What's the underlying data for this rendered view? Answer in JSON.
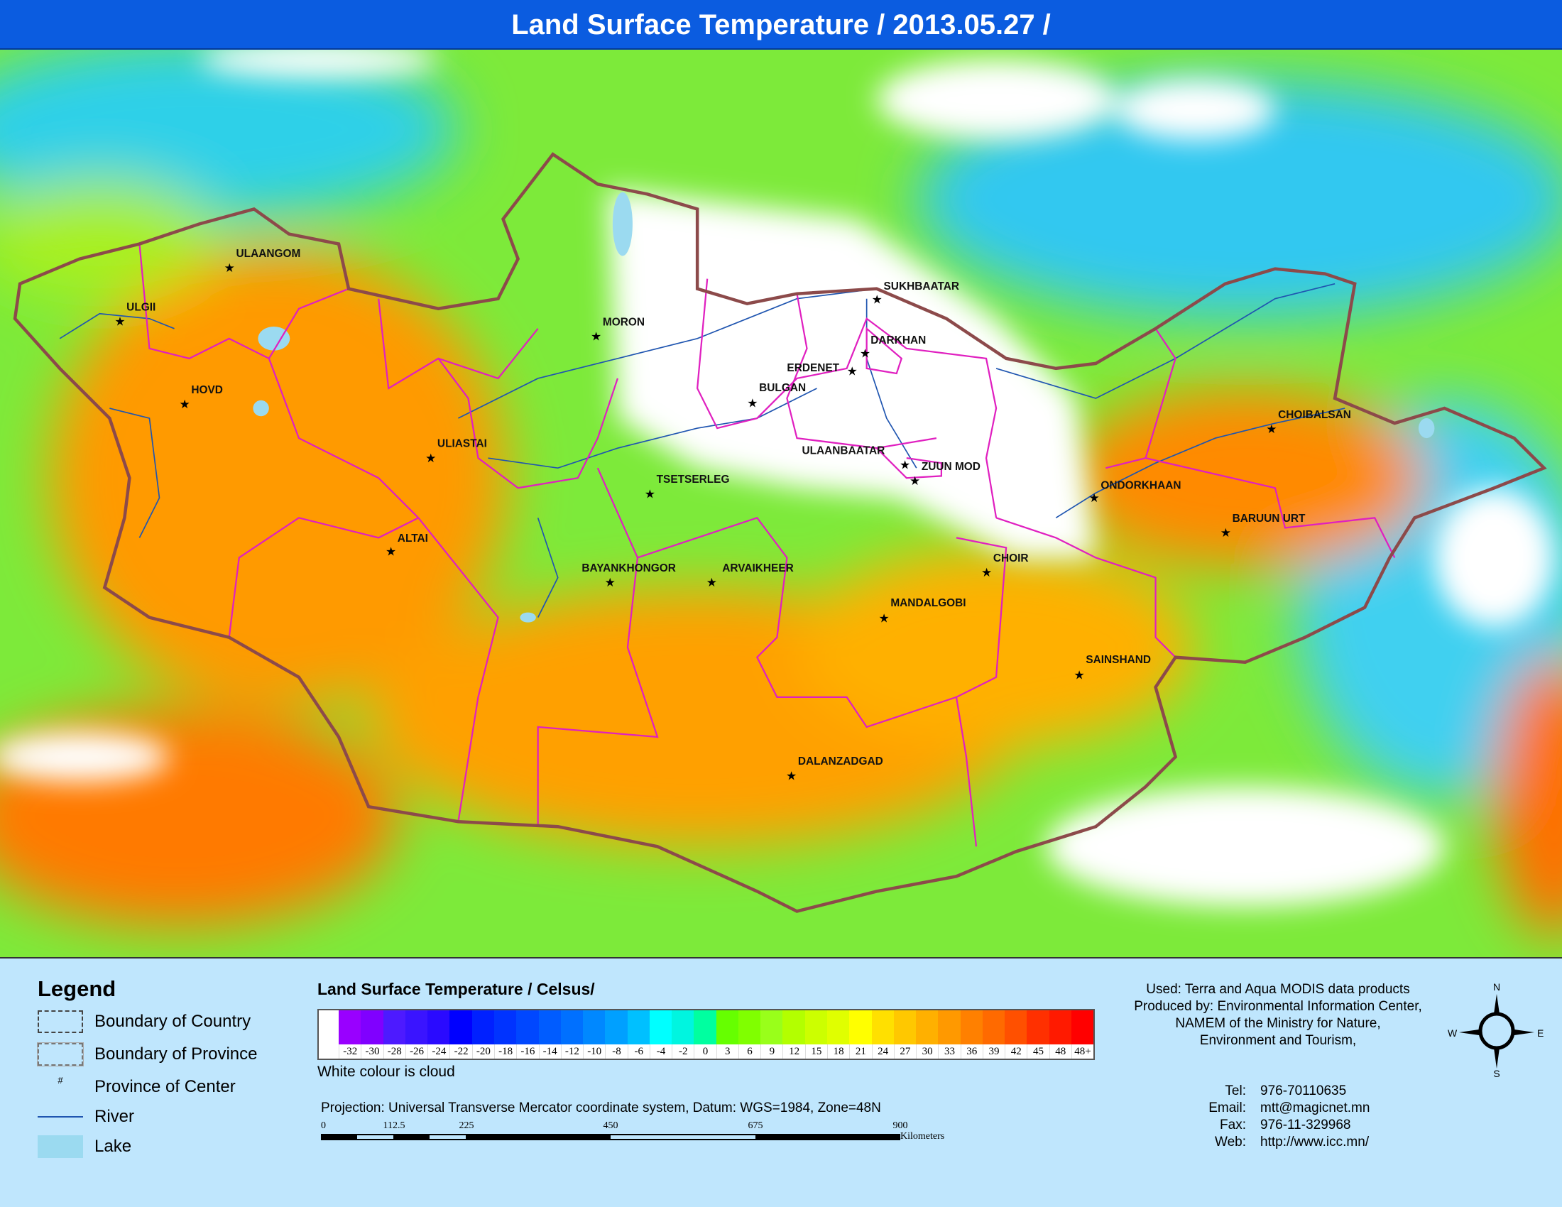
{
  "title": "Land Surface Temperature / 2013.05.27 /",
  "map": {
    "cities": [
      {
        "name": "ULAANGOM"
      },
      {
        "name": "ULGII"
      },
      {
        "name": "HOVD"
      },
      {
        "name": "MORON"
      },
      {
        "name": "SUKHBAATAR"
      },
      {
        "name": "DARKHAN"
      },
      {
        "name": "ERDENET"
      },
      {
        "name": "BULGAN"
      },
      {
        "name": "ULIASTAI"
      },
      {
        "name": "ULAANBAATAR"
      },
      {
        "name": "ZUUN MOD"
      },
      {
        "name": "CHOIBALSAN"
      },
      {
        "name": "TSETSERLEG"
      },
      {
        "name": "ONDORKHAAN"
      },
      {
        "name": "BARUUN URT"
      },
      {
        "name": "ALTAI"
      },
      {
        "name": "BAYANKHONGOR"
      },
      {
        "name": "ARVAIKHEER"
      },
      {
        "name": "CHOIR"
      },
      {
        "name": "MANDALGOBI"
      },
      {
        "name": "SAINSHAND"
      },
      {
        "name": "DALANZADGAD"
      }
    ],
    "colors": {
      "country_boundary": "#8c4a4a",
      "province_boundary": "#e020c0",
      "river": "#1f55b0",
      "lake": "#9bdaf0",
      "cloud": "#ffffff"
    }
  },
  "legend": {
    "title": "Legend",
    "items": [
      {
        "label": "Boundary of Country",
        "symbol": "country-boundary"
      },
      {
        "label": "Boundary of Province",
        "symbol": "province-boundary"
      },
      {
        "label": "Province of Center",
        "symbol": "#"
      },
      {
        "label": "River",
        "symbol": "river-line"
      },
      {
        "label": "Lake",
        "symbol": "lake-fill"
      }
    ]
  },
  "colorbar": {
    "title": "Land Surface Temperature / Celsus/",
    "note": "White colour is cloud",
    "classes": [
      {
        "label": "-32",
        "color": "#9900ff"
      },
      {
        "label": "-30",
        "color": "#8000ff"
      },
      {
        "label": "-28",
        "color": "#4d1aff"
      },
      {
        "label": "-26",
        "color": "#3a14ff"
      },
      {
        "label": "-24",
        "color": "#2a0aff"
      },
      {
        "label": "-22",
        "color": "#0000ff"
      },
      {
        "label": "-20",
        "color": "#0020ff"
      },
      {
        "label": "-18",
        "color": "#0033ff"
      },
      {
        "label": "-16",
        "color": "#0047ff"
      },
      {
        "label": "-14",
        "color": "#005cff"
      },
      {
        "label": "-12",
        "color": "#0070ff"
      },
      {
        "label": "-10",
        "color": "#0088ff"
      },
      {
        "label": "-8",
        "color": "#00a0ff"
      },
      {
        "label": "-6",
        "color": "#00c0ff"
      },
      {
        "label": "-4",
        "color": "#00ffff"
      },
      {
        "label": "-2",
        "color": "#00f5e0"
      },
      {
        "label": "0",
        "color": "#00ffa0"
      },
      {
        "label": "3",
        "color": "#66ff00"
      },
      {
        "label": "6",
        "color": "#80ff00"
      },
      {
        "label": "9",
        "color": "#99ff1a"
      },
      {
        "label": "12",
        "color": "#b3ff00"
      },
      {
        "label": "15",
        "color": "#ccff00"
      },
      {
        "label": "18",
        "color": "#e0ff00"
      },
      {
        "label": "21",
        "color": "#ffff00"
      },
      {
        "label": "24",
        "color": "#ffe000"
      },
      {
        "label": "27",
        "color": "#ffc800"
      },
      {
        "label": "30",
        "color": "#ffb000"
      },
      {
        "label": "33",
        "color": "#ff9900"
      },
      {
        "label": "36",
        "color": "#ff8000"
      },
      {
        "label": "39",
        "color": "#ff6a00"
      },
      {
        "label": "42",
        "color": "#ff5000"
      },
      {
        "label": "45",
        "color": "#ff3000"
      },
      {
        "label": "48",
        "color": "#ff1a00"
      },
      {
        "label": "48+",
        "color": "#ff0000"
      }
    ]
  },
  "projection": "Projection: Universal Transverse Mercator coordinate system, Datum: WGS=1984, Zone=48N",
  "scalebar": {
    "ticks": [
      "0",
      "112.5",
      "225",
      "450",
      "675",
      "900"
    ],
    "units": "Kilometers"
  },
  "credits": {
    "lines": [
      "Used: Terra and Aqua MODIS data products",
      "Produced by: Environmental Information Center,",
      "NAMEM of the Ministry for Nature,",
      "Environment and Tourism,"
    ],
    "contact": [
      {
        "label": "Tel:",
        "value": "976-70110635"
      },
      {
        "label": "Email:",
        "value": "mtt@magicnet.mn"
      },
      {
        "label": "Fax:",
        "value": "976-11-329968"
      },
      {
        "label": "Web:",
        "value": "http://www.icc.mn/"
      }
    ]
  },
  "compass": {
    "n": "N",
    "s": "S",
    "e": "E",
    "w": "W"
  }
}
